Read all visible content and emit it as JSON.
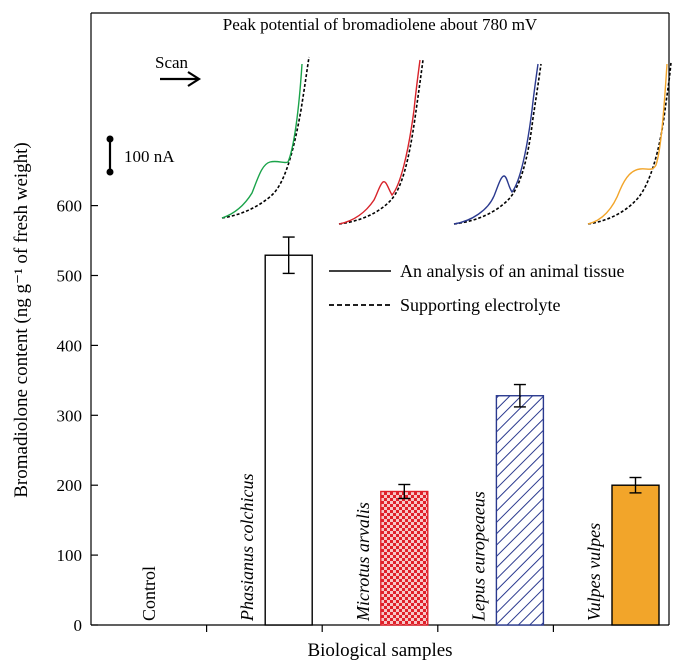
{
  "chart_data": {
    "type": "bar",
    "title": "Peak potential of bromadiolene about 780 mV",
    "xlabel": "Biological samples",
    "ylabel": "Bromadiolone content (ng g⁻¹ of fresh weight)",
    "ylim": [
      0,
      700
    ],
    "yticks": [
      "0",
      "100",
      "200",
      "300",
      "400",
      "500",
      "600"
    ],
    "categories": [
      "Control",
      "Phasianus colchicus",
      "Microtus arvalis",
      "Lepus europeaeus",
      "Vulpes vulpes"
    ],
    "values": [
      0,
      529,
      191,
      328,
      200
    ],
    "errors": [
      0,
      26,
      10,
      16,
      11
    ],
    "bar_styles": [
      "none",
      "white",
      "red-checker",
      "blue-hatch",
      "orange"
    ],
    "colors": {
      "phasianus": "#ffffff",
      "microtus": "#e0202a",
      "lepus": "#2b3a8f",
      "vulpes": "#f2a52a",
      "curve_green": "#1aa34a",
      "curve_red": "#d8232a",
      "curve_blue": "#2b3a8f",
      "curve_orange": "#f2a52a"
    },
    "legend": {
      "placement": "center-right",
      "entries": [
        {
          "label": "An analysis of an animal tissue",
          "style": "solid"
        },
        {
          "label": "Supporting electrolyte",
          "style": "dashed"
        }
      ]
    },
    "annotations": {
      "scan_label": "Scan",
      "scale_label": "100 nA"
    },
    "grid": false
  }
}
